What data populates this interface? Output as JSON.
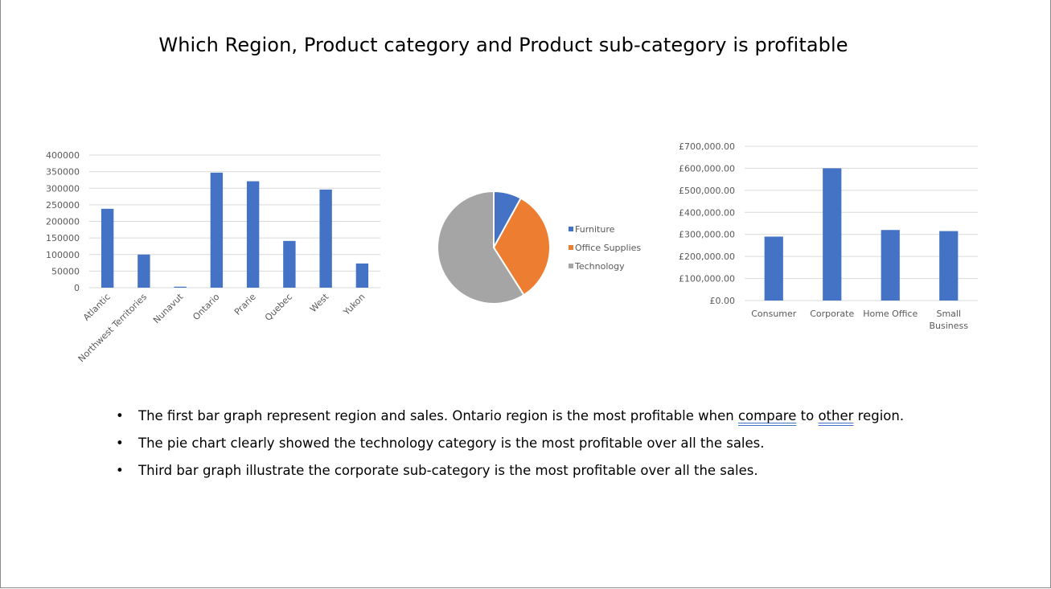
{
  "title": "Which Region, Product category and Product sub-category is profitable",
  "chart_data": [
    {
      "type": "bar",
      "categories": [
        "Atlantic",
        "Northwest Territories",
        "Nunavut",
        "Ontario",
        "Prarie",
        "Quebec",
        "West",
        "Yukon"
      ],
      "values": [
        238000,
        100000,
        3000,
        347000,
        321000,
        141000,
        296000,
        73000
      ],
      "ylim": [
        0,
        400000
      ],
      "yticks": [
        "0",
        "50000",
        "100000",
        "150000",
        "200000",
        "250000",
        "300000",
        "350000",
        "400000"
      ],
      "grid": true,
      "color": "#4472c4"
    },
    {
      "type": "pie",
      "categories": [
        "Furniture",
        "Office Supplies",
        "Technology"
      ],
      "values": [
        8,
        33,
        59
      ],
      "colors": [
        "#4472c4",
        "#ed7d31",
        "#a5a5a5"
      ],
      "legend": "right"
    },
    {
      "type": "bar",
      "categories": [
        "Consumer",
        "Corporate",
        "Home Office",
        "Small Business"
      ],
      "category_lines": [
        [
          "Consumer"
        ],
        [
          "Corporate"
        ],
        [
          "Home Office"
        ],
        [
          "Small",
          "Business"
        ]
      ],
      "values": [
        290000,
        600000,
        320000,
        315000
      ],
      "ylim": [
        0,
        700000
      ],
      "yticks": [
        "£0.00",
        "£100,000.00",
        "£200,000.00",
        "£300,000.00",
        "£400,000.00",
        "£500,000.00",
        "£600,000.00",
        "£700,000.00"
      ],
      "grid": true,
      "color": "#4472c4"
    }
  ],
  "bullets": {
    "b1_pre": "The first bar graph represent region and sales. Ontario region is the most profitable when ",
    "b1_w1": "compare",
    "b1_mid": " to ",
    "b1_w2": "other",
    "b1_post": " region.",
    "b2": "The pie chart clearly showed the technology category is the most profitable over all the sales.",
    "b3": "Third bar graph illustrate the corporate sub-category is the most profitable over all the sales.",
    "marker": "•"
  }
}
